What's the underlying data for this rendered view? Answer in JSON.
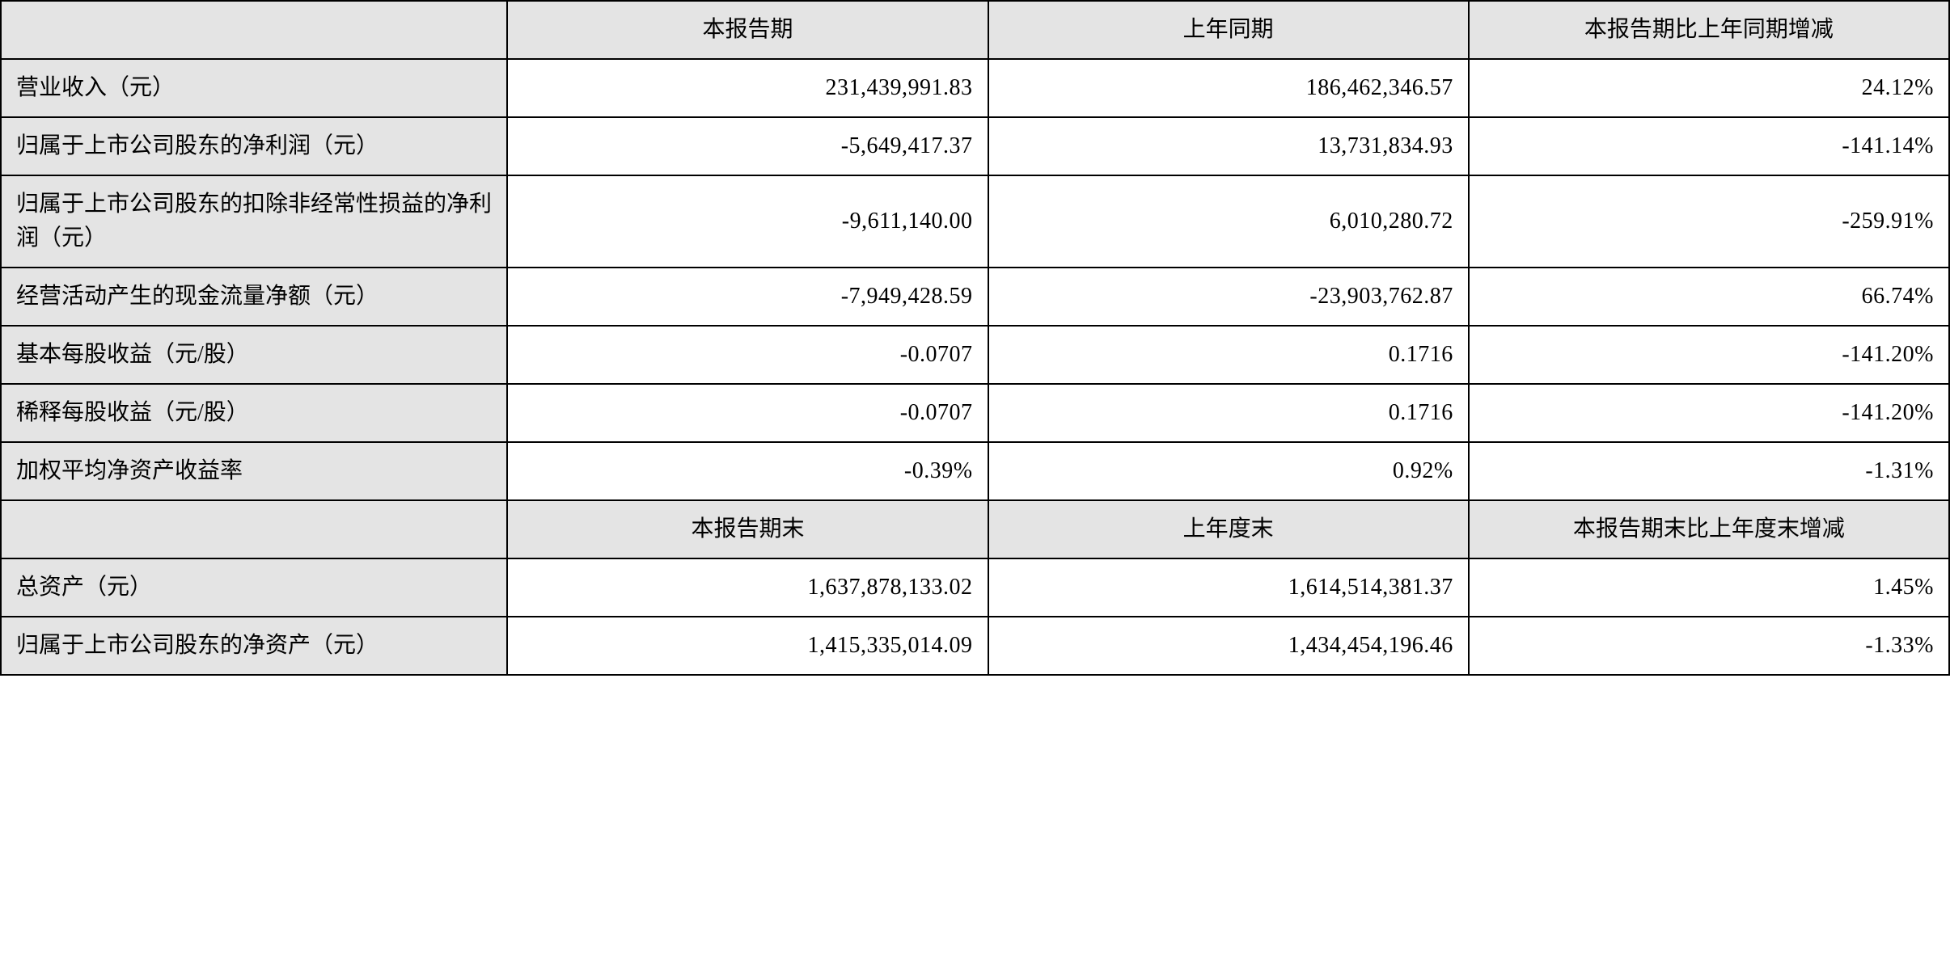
{
  "table": {
    "type": "table",
    "background_color": "#ffffff",
    "header_bg_color": "#e4e4e4",
    "label_bg_color": "#e4e4e4",
    "border_color": "#000000",
    "border_width": 2,
    "font_family": "SimSun",
    "font_size": 28,
    "text_color": "#000000",
    "column_widths": [
      "26%",
      "24.666%",
      "24.666%",
      "24.666%"
    ],
    "column_alignment": [
      "left",
      "right",
      "right",
      "right"
    ],
    "header1": {
      "col0": "",
      "col1": "本报告期",
      "col2": "上年同期",
      "col3": "本报告期比上年同期增减"
    },
    "rows1": [
      {
        "label": "营业收入（元）",
        "col1": "231,439,991.83",
        "col2": "186,462,346.57",
        "col3": "24.12%"
      },
      {
        "label": "归属于上市公司股东的净利润（元）",
        "col1": "-5,649,417.37",
        "col2": "13,731,834.93",
        "col3": "-141.14%"
      },
      {
        "label": "归属于上市公司股东的扣除非经常性损益的净利润（元）",
        "col1": "-9,611,140.00",
        "col2": "6,010,280.72",
        "col3": "-259.91%"
      },
      {
        "label": "经营活动产生的现金流量净额（元）",
        "col1": "-7,949,428.59",
        "col2": "-23,903,762.87",
        "col3": "66.74%"
      },
      {
        "label": "基本每股收益（元/股）",
        "col1": "-0.0707",
        "col2": "0.1716",
        "col3": "-141.20%"
      },
      {
        "label": "稀释每股收益（元/股）",
        "col1": "-0.0707",
        "col2": "0.1716",
        "col3": "-141.20%"
      },
      {
        "label": "加权平均净资产收益率",
        "col1": "-0.39%",
        "col2": "0.92%",
        "col3": "-1.31%"
      }
    ],
    "header2": {
      "col0": "",
      "col1": "本报告期末",
      "col2": "上年度末",
      "col3": "本报告期末比上年度末增减"
    },
    "rows2": [
      {
        "label": "总资产（元）",
        "col1": "1,637,878,133.02",
        "col2": "1,614,514,381.37",
        "col3": "1.45%"
      },
      {
        "label": "归属于上市公司股东的净资产（元）",
        "col1": "1,415,335,014.09",
        "col2": "1,434,454,196.46",
        "col3": "-1.33%"
      }
    ]
  }
}
